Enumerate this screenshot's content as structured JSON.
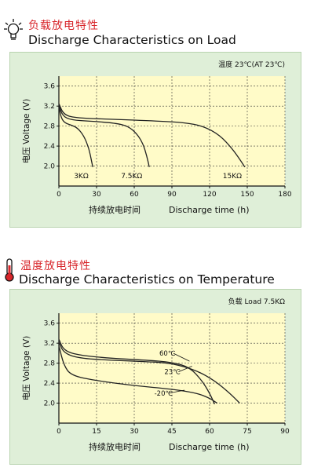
{
  "charts_header": [
    {
      "title_cn": "负载放电特性",
      "title_en": "Discharge Characteristics on Load",
      "icon": "lightbulb-icon"
    },
    {
      "title_cn": "温度放电特性",
      "title_en": "Discharge Characteristics on Temperature",
      "icon": "thermometer-icon"
    }
  ],
  "colors": {
    "title_red": "#d8262b",
    "panel_bg": "#dfefd8",
    "plot_bg": "#fffbc8",
    "curve": "#222222",
    "grid": "#333333"
  },
  "chart_data": [
    {
      "type": "line",
      "condition": "温度 23℃(AT 23℃)",
      "ylabel": "电压  Voltage (V)",
      "xlabel_cn": "持续放电时间",
      "xlabel_en": "Discharge time (h)",
      "xlim": [
        0,
        180
      ],
      "ylim": [
        1.6,
        3.8
      ],
      "xticks": [
        0,
        30,
        60,
        90,
        120,
        150,
        180
      ],
      "yticks": [
        2.0,
        2.4,
        2.8,
        3.2,
        3.6
      ],
      "grid": true,
      "series": [
        {
          "name": "3KΩ",
          "points": [
            [
              0,
              3.18
            ],
            [
              2,
              2.95
            ],
            [
              5,
              2.86
            ],
            [
              10,
              2.82
            ],
            [
              15,
              2.76
            ],
            [
              20,
              2.6
            ],
            [
              24,
              2.35
            ],
            [
              26,
              2.1
            ],
            [
              27,
              1.98
            ]
          ]
        },
        {
          "name": "7.5KΩ",
          "points": [
            [
              0,
              3.22
            ],
            [
              3,
              3.0
            ],
            [
              10,
              2.92
            ],
            [
              25,
              2.9
            ],
            [
              45,
              2.86
            ],
            [
              55,
              2.8
            ],
            [
              62,
              2.65
            ],
            [
              67,
              2.45
            ],
            [
              70,
              2.2
            ],
            [
              72,
              1.98
            ]
          ]
        },
        {
          "name": "15KΩ",
          "points": [
            [
              0,
              3.25
            ],
            [
              4,
              3.02
            ],
            [
              15,
              2.96
            ],
            [
              40,
              2.94
            ],
            [
              80,
              2.9
            ],
            [
              100,
              2.87
            ],
            [
              115,
              2.8
            ],
            [
              128,
              2.62
            ],
            [
              138,
              2.35
            ],
            [
              145,
              2.1
            ],
            [
              148,
              1.98
            ]
          ]
        }
      ]
    },
    {
      "type": "line",
      "condition": "负载  Load 7.5KΩ",
      "ylabel": "电压  Voltage (V)",
      "xlabel_cn": "持续放电时间",
      "xlabel_en": "Discharge time (h)",
      "xlim": [
        0,
        90
      ],
      "ylim": [
        1.6,
        3.8
      ],
      "xticks": [
        0,
        15,
        30,
        45,
        60,
        75,
        90
      ],
      "yticks": [
        2.0,
        2.4,
        2.8,
        3.2,
        3.6
      ],
      "grid": true,
      "series": [
        {
          "name": "60℃",
          "points": [
            [
              0,
              3.28
            ],
            [
              2,
              3.05
            ],
            [
              8,
              2.96
            ],
            [
              20,
              2.9
            ],
            [
              35,
              2.86
            ],
            [
              45,
              2.82
            ],
            [
              52,
              2.72
            ],
            [
              57,
              2.45
            ],
            [
              60,
              2.2
            ],
            [
              62,
              1.98
            ]
          ]
        },
        {
          "name": "23℃",
          "points": [
            [
              0,
              3.22
            ],
            [
              2,
              3.0
            ],
            [
              8,
              2.9
            ],
            [
              20,
              2.86
            ],
            [
              35,
              2.83
            ],
            [
              45,
              2.8
            ],
            [
              55,
              2.65
            ],
            [
              62,
              2.45
            ],
            [
              68,
              2.2
            ],
            [
              72,
              2.0
            ]
          ]
        },
        {
          "name": "-20℃",
          "points": [
            [
              0,
              3.15
            ],
            [
              2,
              2.75
            ],
            [
              5,
              2.55
            ],
            [
              15,
              2.45
            ],
            [
              30,
              2.35
            ],
            [
              45,
              2.28
            ],
            [
              55,
              2.2
            ],
            [
              60,
              2.1
            ],
            [
              63,
              2.0
            ]
          ]
        }
      ]
    }
  ]
}
